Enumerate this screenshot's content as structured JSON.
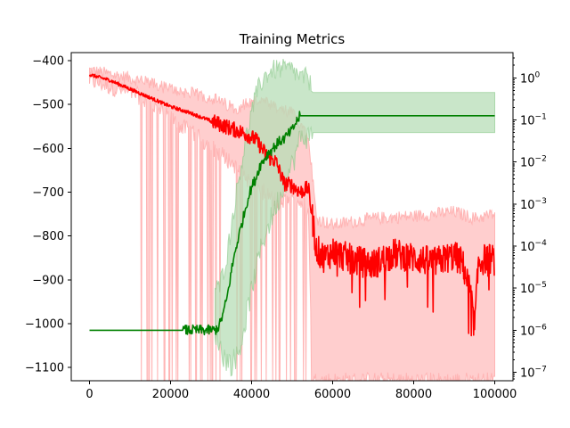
{
  "chart_data": {
    "type": "line",
    "title": "Training Metrics",
    "xlabel": "",
    "ylabel": "",
    "y2label": "",
    "xlim": [
      -4500,
      104500
    ],
    "ylim": [
      -1130,
      -382
    ],
    "y2lim_log10": [
      -7.2,
      0.6
    ],
    "y2_scale": "log",
    "grid": false,
    "legend": "none",
    "x_ticks": [
      0,
      20000,
      40000,
      60000,
      80000,
      100000
    ],
    "x_tick_labels": [
      "0",
      "20000",
      "40000",
      "60000",
      "80000",
      "100000"
    ],
    "y_ticks": [
      -400,
      -500,
      -600,
      -700,
      -800,
      -900,
      -1000,
      -1100
    ],
    "y_tick_labels": [
      "−400",
      "−500",
      "−600",
      "−700",
      "−800",
      "−900",
      "−1000",
      "−1100"
    ],
    "y2_tick_exponents": [
      0,
      -1,
      -2,
      -3,
      -4,
      -5,
      -6,
      -7
    ],
    "y2_tick_labels": [
      "10",
      "10",
      "10",
      "10",
      "10",
      "10",
      "10",
      "10"
    ],
    "y2_tick_sups": [
      "0",
      "−1",
      "−2",
      "−3",
      "−4",
      "−5",
      "−6",
      "−7"
    ],
    "colors": {
      "red_series": "#ff0000",
      "red_band": "#ffcccc",
      "red_band_stroke": "#ffb0b0",
      "green_series": "#008000",
      "green_band": "#b7deb7",
      "green_band_stroke": "#8fcc8f"
    },
    "series": [
      {
        "axis": "left",
        "color": "red",
        "points": [
          [
            0,
            -432
          ],
          [
            5000,
            -445
          ],
          [
            10000,
            -465
          ],
          [
            15000,
            -485
          ],
          [
            20000,
            -505
          ],
          [
            25000,
            -520
          ],
          [
            30000,
            -538
          ],
          [
            35000,
            -555
          ],
          [
            38000,
            -565
          ],
          [
            41000,
            -580
          ],
          [
            44000,
            -620
          ],
          [
            46000,
            -630
          ],
          [
            48000,
            -680
          ],
          [
            50000,
            -685
          ],
          [
            52000,
            -700
          ],
          [
            54000,
            -690
          ],
          [
            56000,
            -830
          ],
          [
            58000,
            -850
          ],
          [
            60000,
            -835
          ],
          [
            65000,
            -855
          ],
          [
            70000,
            -865
          ],
          [
            75000,
            -840
          ],
          [
            80000,
            -850
          ],
          [
            85000,
            -860
          ],
          [
            90000,
            -845
          ],
          [
            92000,
            -860
          ],
          [
            94000,
            -930
          ],
          [
            95000,
            -1010
          ],
          [
            96000,
            -860
          ],
          [
            98000,
            -850
          ],
          [
            100000,
            -855
          ]
        ],
        "band_upper": [
          [
            0,
            -422
          ],
          [
            10000,
            -440
          ],
          [
            20000,
            -465
          ],
          [
            30000,
            -485
          ],
          [
            36000,
            -510
          ],
          [
            38000,
            -500
          ],
          [
            42000,
            -490
          ],
          [
            46000,
            -510
          ],
          [
            50000,
            -520
          ],
          [
            54000,
            -565
          ],
          [
            56000,
            -760
          ],
          [
            60000,
            -775
          ],
          [
            70000,
            -760
          ],
          [
            80000,
            -755
          ],
          [
            90000,
            -745
          ],
          [
            95000,
            -760
          ],
          [
            100000,
            -750
          ]
        ],
        "band_lower": [
          [
            0,
            -445
          ],
          [
            12000,
            -480
          ],
          [
            18000,
            -520
          ],
          [
            26000,
            -570
          ],
          [
            32000,
            -610
          ],
          [
            36000,
            -640
          ],
          [
            40000,
            -680
          ],
          [
            46000,
            -720
          ],
          [
            52000,
            -720
          ],
          [
            54000,
            -740
          ],
          [
            55000,
            -1130
          ],
          [
            100000,
            -1130
          ]
        ]
      },
      {
        "axis": "right",
        "color": "green",
        "points_log10": [
          [
            0,
            -6
          ],
          [
            24000,
            -6
          ],
          [
            31000,
            -6
          ],
          [
            32000,
            -5.9
          ],
          [
            33000,
            -5.6
          ],
          [
            34000,
            -5.2
          ],
          [
            35000,
            -4.6
          ],
          [
            36000,
            -4.1
          ],
          [
            37000,
            -3.7
          ],
          [
            38000,
            -3.3
          ],
          [
            39000,
            -2.9
          ],
          [
            40000,
            -2.6
          ],
          [
            41000,
            -2.4
          ],
          [
            42000,
            -2.1
          ],
          [
            43000,
            -1.95
          ],
          [
            44000,
            -1.8
          ],
          [
            45000,
            -1.7
          ],
          [
            46000,
            -1.6
          ],
          [
            47000,
            -1.5
          ],
          [
            48000,
            -1.45
          ],
          [
            49000,
            -1.35
          ],
          [
            50000,
            -1.25
          ],
          [
            51000,
            -1.05
          ],
          [
            52000,
            -0.9
          ],
          [
            100000,
            -0.9
          ]
        ],
        "band_upper_log10": [
          [
            32000,
            -5
          ],
          [
            34000,
            -4.2
          ],
          [
            35500,
            -3.2
          ],
          [
            37000,
            -2.3
          ],
          [
            38500,
            -1.5
          ],
          [
            40000,
            -0.8
          ],
          [
            41500,
            -0.3
          ],
          [
            43000,
            0
          ],
          [
            44500,
            0.15
          ],
          [
            46000,
            0.2
          ],
          [
            48000,
            0.2
          ],
          [
            50000,
            0.2
          ],
          [
            52000,
            0
          ],
          [
            54000,
            0
          ],
          [
            55000,
            -0.35
          ],
          [
            100000,
            -0.35
          ]
        ],
        "band_lower_log10": [
          [
            31000,
            -6
          ],
          [
            33000,
            -6.6
          ],
          [
            35000,
            -6.8
          ],
          [
            37000,
            -6.5
          ],
          [
            39000,
            -5.5
          ],
          [
            41000,
            -4.6
          ],
          [
            43000,
            -3.8
          ],
          [
            45000,
            -3.3
          ],
          [
            47000,
            -2.8
          ],
          [
            49000,
            -2.3
          ],
          [
            51000,
            -1.8
          ],
          [
            52000,
            -1.4
          ],
          [
            54000,
            -1.4
          ],
          [
            55000,
            -1.3
          ],
          [
            100000,
            -1.3
          ]
        ]
      }
    ]
  }
}
